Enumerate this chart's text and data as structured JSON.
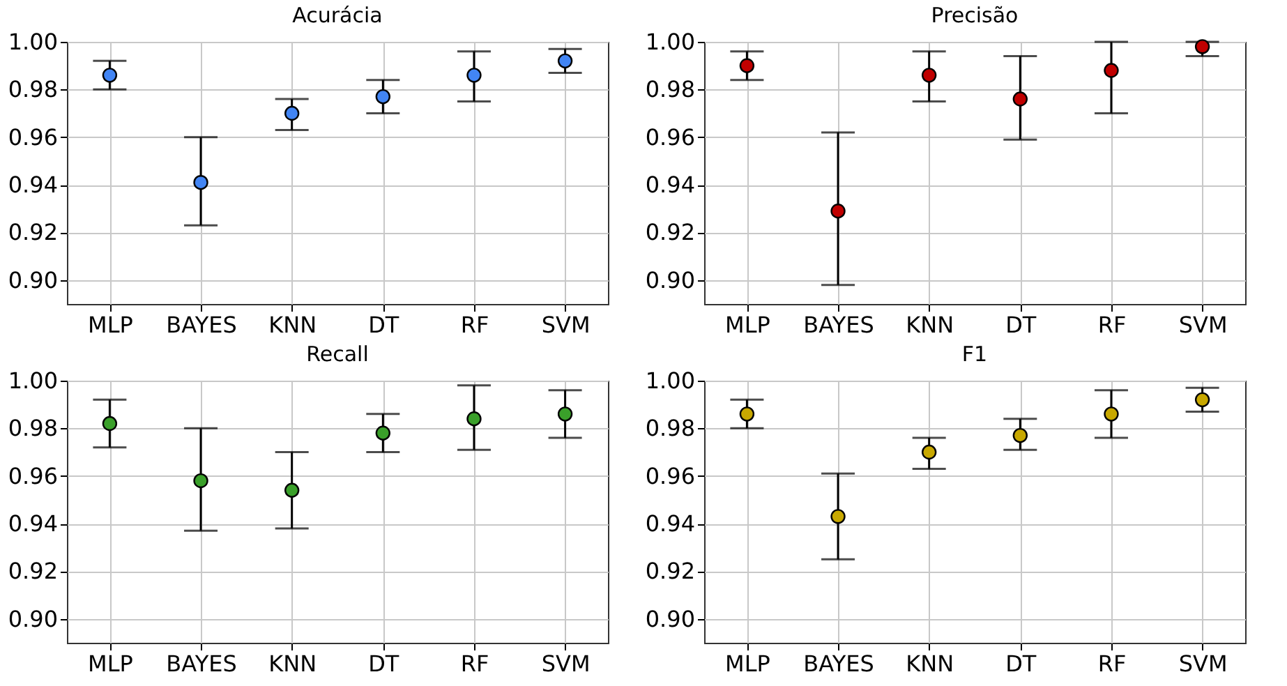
{
  "chart_data": [
    {
      "type": "scatter",
      "title": "Acurácia",
      "categories": [
        "MLP",
        "BAYES",
        "KNN",
        "DT",
        "RF",
        "SVM"
      ],
      "marker": "circle",
      "grid": true,
      "ylim": [
        0.89,
        1.0
      ],
      "yticks": [
        {
          "value": 0.9,
          "label": "0.90"
        },
        {
          "value": 0.92,
          "label": "0.92"
        },
        {
          "value": 0.94,
          "label": "0.94"
        },
        {
          "value": 0.96,
          "label": "0.96"
        },
        {
          "value": 0.98,
          "label": "0.98"
        },
        {
          "value": 1.0,
          "label": "1.00"
        }
      ],
      "series": [
        {
          "color": "#4285f4",
          "values": [
            0.986,
            0.941,
            0.97,
            0.977,
            0.986,
            0.992
          ],
          "errors": [
            [
              0.98,
              0.992
            ],
            [
              0.923,
              0.96
            ],
            [
              0.963,
              0.976
            ],
            [
              0.97,
              0.984
            ],
            [
              0.975,
              0.996
            ],
            [
              0.987,
              0.997
            ]
          ]
        }
      ]
    },
    {
      "type": "scatter",
      "title": "Precisão",
      "categories": [
        "MLP",
        "BAYES",
        "KNN",
        "DT",
        "RF",
        "SVM"
      ],
      "marker": "circle",
      "grid": true,
      "ylim": [
        0.89,
        1.0
      ],
      "yticks": [
        {
          "value": 0.9,
          "label": "0.90"
        },
        {
          "value": 0.92,
          "label": "0.92"
        },
        {
          "value": 0.94,
          "label": "0.94"
        },
        {
          "value": 0.96,
          "label": "0.96"
        },
        {
          "value": 0.98,
          "label": "0.98"
        },
        {
          "value": 1.0,
          "label": "1.00"
        }
      ],
      "series": [
        {
          "color": "#c00000",
          "values": [
            0.99,
            0.929,
            0.986,
            0.976,
            0.988,
            0.998
          ],
          "errors": [
            [
              0.984,
              0.996
            ],
            [
              0.898,
              0.962
            ],
            [
              0.975,
              0.996
            ],
            [
              0.959,
              0.994
            ],
            [
              0.97,
              1.0
            ],
            [
              0.994,
              1.0
            ]
          ]
        }
      ]
    },
    {
      "type": "scatter",
      "title": "Recall",
      "categories": [
        "MLP",
        "BAYES",
        "KNN",
        "DT",
        "RF",
        "SVM"
      ],
      "marker": "circle",
      "grid": true,
      "ylim": [
        0.89,
        1.0
      ],
      "yticks": [
        {
          "value": 0.9,
          "label": "0.90"
        },
        {
          "value": 0.92,
          "label": "0.92"
        },
        {
          "value": 0.94,
          "label": "0.94"
        },
        {
          "value": 0.96,
          "label": "0.96"
        },
        {
          "value": 0.98,
          "label": "0.98"
        },
        {
          "value": 1.0,
          "label": "1.00"
        }
      ],
      "series": [
        {
          "color": "#3aa02a",
          "values": [
            0.982,
            0.958,
            0.954,
            0.978,
            0.984,
            0.986
          ],
          "errors": [
            [
              0.972,
              0.992
            ],
            [
              0.937,
              0.98
            ],
            [
              0.938,
              0.97
            ],
            [
              0.97,
              0.986
            ],
            [
              0.971,
              0.998
            ],
            [
              0.976,
              0.996
            ]
          ]
        }
      ]
    },
    {
      "type": "scatter",
      "title": "F1",
      "categories": [
        "MLP",
        "BAYES",
        "KNN",
        "DT",
        "RF",
        "SVM"
      ],
      "marker": "circle",
      "grid": true,
      "ylim": [
        0.89,
        1.0
      ],
      "yticks": [
        {
          "value": 0.9,
          "label": "0.90"
        },
        {
          "value": 0.92,
          "label": "0.92"
        },
        {
          "value": 0.94,
          "label": "0.94"
        },
        {
          "value": 0.96,
          "label": "0.96"
        },
        {
          "value": 0.98,
          "label": "0.98"
        },
        {
          "value": 1.0,
          "label": "1.00"
        }
      ],
      "series": [
        {
          "color": "#c8a800",
          "values": [
            0.986,
            0.943,
            0.97,
            0.977,
            0.986,
            0.992
          ],
          "errors": [
            [
              0.98,
              0.992
            ],
            [
              0.925,
              0.961
            ],
            [
              0.963,
              0.976
            ],
            [
              0.971,
              0.984
            ],
            [
              0.976,
              0.996
            ],
            [
              0.987,
              0.997
            ]
          ]
        }
      ]
    }
  ]
}
